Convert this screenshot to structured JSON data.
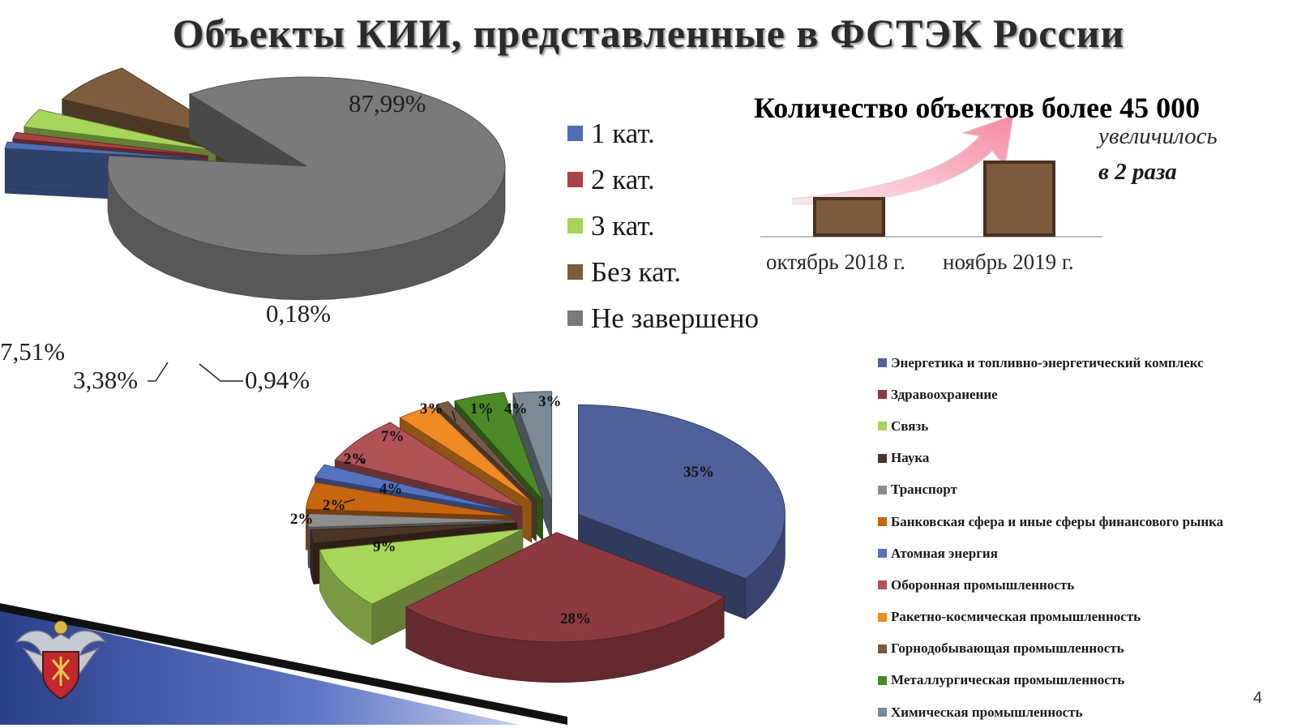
{
  "title": "Объекты КИИ, представленные в ФСТЭК России",
  "page_number": "4",
  "colors": {
    "cat1": "#4f6eb3",
    "cat2": "#a64446",
    "cat3": "#a6d55a",
    "nocat": "#7d5d3d",
    "unfinished": "#7a7a7a",
    "energy": "#4f609b",
    "health": "#8b3a3f",
    "comm": "#a8d65a",
    "science": "#4c3426",
    "transport": "#8d8d8d",
    "bank": "#c8650f",
    "atomic": "#5572c0",
    "defense": "#b05256",
    "space": "#ef8a24",
    "mining": "#7a5a47",
    "metal": "#4b8a26",
    "chem": "#7b8a94"
  },
  "chart_data": [
    {
      "type": "pie",
      "legend_position": "right",
      "series": [
        {
          "name": "1 кат.",
          "value": 0.18,
          "label": "0,18%"
        },
        {
          "name": "2 кат.",
          "value": 0.94,
          "label": "0,94%"
        },
        {
          "name": "3 кат.",
          "value": 3.38,
          "label": "3,38%"
        },
        {
          "name": "Без кат.",
          "value": 7.51,
          "label": "7,51%"
        },
        {
          "name": "Не завершено",
          "value": 87.99,
          "label": "87,99%"
        }
      ]
    },
    {
      "type": "pie",
      "legend_position": "right",
      "series": [
        {
          "name": "Энергетика и топливно-энергетический комплекс",
          "value": 35,
          "label": "35%"
        },
        {
          "name": "Здравоохранение",
          "value": 28,
          "label": "28%"
        },
        {
          "name": "Связь",
          "value": 9,
          "label": "9%"
        },
        {
          "name": "Наука",
          "value": 2,
          "label": "2%"
        },
        {
          "name": "Транспорт",
          "value": 2,
          "label": "2%"
        },
        {
          "name": "Банковская сфера и иные сферы финансового рынка",
          "value": 4,
          "label": "4%"
        },
        {
          "name": "Атомная энергия",
          "value": 2,
          "label": "2%"
        },
        {
          "name": "Оборонная промышленность",
          "value": 7,
          "label": "7%"
        },
        {
          "name": "Ракетно-космическая промышленность",
          "value": 3,
          "label": "3%"
        },
        {
          "name": "Горнодобывающая промышленность",
          "value": 1,
          "label": "1%"
        },
        {
          "name": "Металлургическая промышленность",
          "value": 4,
          "label": "4%"
        },
        {
          "name": "Химическая промышленность",
          "value": 3,
          "label": "3%"
        }
      ]
    },
    {
      "type": "bar",
      "title": "Количество объектов более 45 000",
      "categories": [
        "октябрь 2018 г.",
        "ноябрь 2019 г."
      ],
      "values": [
        1,
        2
      ],
      "annotation": [
        "увеличилось",
        "в 2 раза"
      ]
    }
  ]
}
